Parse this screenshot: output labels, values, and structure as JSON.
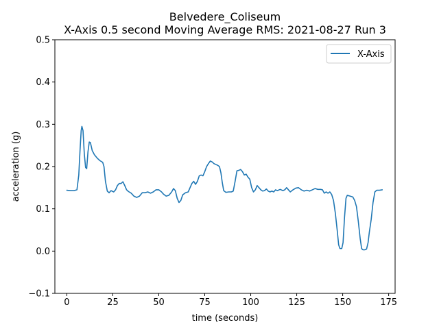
{
  "chart_data": {
    "type": "line",
    "title_line1": "Belvedere_Coliseum",
    "title_line2": "X-Axis 0.5 second Moving Average RMS: 2021-08-27 Run 3",
    "xlabel": "time (seconds)",
    "ylabel": "acceleration (g)",
    "xlim": [
      -6.5,
      178.5
    ],
    "ylim": [
      -0.1,
      0.5
    ],
    "xticks": [
      0,
      25,
      50,
      75,
      100,
      125,
      150,
      175
    ],
    "yticks": [
      -0.1,
      0.0,
      0.1,
      0.2,
      0.3,
      0.4,
      0.5
    ],
    "xtick_labels": [
      "0",
      "25",
      "50",
      "75",
      "100",
      "125",
      "150",
      "175"
    ],
    "ytick_labels": [
      "−0.1",
      "0.0",
      "0.1",
      "0.2",
      "0.3",
      "0.4",
      "0.5"
    ],
    "grid": false,
    "legend_position": "top-right",
    "series": [
      {
        "name": "X-Axis",
        "color": "#1f77b4",
        "points": [
          [
            0,
            0.144
          ],
          [
            2,
            0.143
          ],
          [
            4,
            0.143
          ],
          [
            5.5,
            0.145
          ],
          [
            6.5,
            0.18
          ],
          [
            7.2,
            0.24
          ],
          [
            7.8,
            0.285
          ],
          [
            8.2,
            0.295
          ],
          [
            8.8,
            0.285
          ],
          [
            9.5,
            0.23
          ],
          [
            10.2,
            0.198
          ],
          [
            10.8,
            0.195
          ],
          [
            11.5,
            0.235
          ],
          [
            12.2,
            0.258
          ],
          [
            12.8,
            0.257
          ],
          [
            13.8,
            0.238
          ],
          [
            15,
            0.228
          ],
          [
            16.5,
            0.22
          ],
          [
            18,
            0.214
          ],
          [
            19.5,
            0.21
          ],
          [
            20.2,
            0.2
          ],
          [
            21,
            0.165
          ],
          [
            22,
            0.142
          ],
          [
            23,
            0.138
          ],
          [
            24,
            0.143
          ],
          [
            25.5,
            0.14
          ],
          [
            26.5,
            0.145
          ],
          [
            27.5,
            0.155
          ],
          [
            28.5,
            0.16
          ],
          [
            29.5,
            0.16
          ],
          [
            30.5,
            0.164
          ],
          [
            31.5,
            0.155
          ],
          [
            32.5,
            0.145
          ],
          [
            33.5,
            0.141
          ],
          [
            35,
            0.137
          ],
          [
            36.5,
            0.13
          ],
          [
            38,
            0.127
          ],
          [
            39.5,
            0.13
          ],
          [
            41,
            0.138
          ],
          [
            42.5,
            0.138
          ],
          [
            44,
            0.14
          ],
          [
            45.5,
            0.137
          ],
          [
            47,
            0.14
          ],
          [
            48.5,
            0.145
          ],
          [
            50,
            0.145
          ],
          [
            51.5,
            0.14
          ],
          [
            52.5,
            0.135
          ],
          [
            54,
            0.13
          ],
          [
            55.5,
            0.132
          ],
          [
            57,
            0.14
          ],
          [
            58,
            0.148
          ],
          [
            59,
            0.143
          ],
          [
            60,
            0.125
          ],
          [
            61,
            0.115
          ],
          [
            62,
            0.12
          ],
          [
            63,
            0.133
          ],
          [
            64.5,
            0.138
          ],
          [
            66,
            0.14
          ],
          [
            67,
            0.15
          ],
          [
            68,
            0.16
          ],
          [
            69,
            0.165
          ],
          [
            70,
            0.158
          ],
          [
            71,
            0.165
          ],
          [
            72,
            0.178
          ],
          [
            73,
            0.18
          ],
          [
            74,
            0.178
          ],
          [
            75,
            0.188
          ],
          [
            76,
            0.2
          ],
          [
            77,
            0.207
          ],
          [
            78,
            0.213
          ],
          [
            79,
            0.211
          ],
          [
            80,
            0.207
          ],
          [
            81,
            0.205
          ],
          [
            82,
            0.203
          ],
          [
            83,
            0.2
          ],
          [
            83.8,
            0.185
          ],
          [
            84.5,
            0.163
          ],
          [
            85.3,
            0.143
          ],
          [
            86.5,
            0.139
          ],
          [
            88,
            0.14
          ],
          [
            89.5,
            0.14
          ],
          [
            90.5,
            0.142
          ],
          [
            91.5,
            0.165
          ],
          [
            92.5,
            0.19
          ],
          [
            93.5,
            0.191
          ],
          [
            94.5,
            0.193
          ],
          [
            95.5,
            0.188
          ],
          [
            96.5,
            0.18
          ],
          [
            97.5,
            0.182
          ],
          [
            98.5,
            0.175
          ],
          [
            99.5,
            0.17
          ],
          [
            100.5,
            0.15
          ],
          [
            101.5,
            0.14
          ],
          [
            102.5,
            0.145
          ],
          [
            103.5,
            0.155
          ],
          [
            104.5,
            0.15
          ],
          [
            105.5,
            0.145
          ],
          [
            106.5,
            0.142
          ],
          [
            107.5,
            0.143
          ],
          [
            108.5,
            0.147
          ],
          [
            109.5,
            0.142
          ],
          [
            110.5,
            0.14
          ],
          [
            111.5,
            0.142
          ],
          [
            112.5,
            0.14
          ],
          [
            113.5,
            0.145
          ],
          [
            114.5,
            0.143
          ],
          [
            116,
            0.146
          ],
          [
            117.5,
            0.143
          ],
          [
            118.5,
            0.145
          ],
          [
            119.5,
            0.15
          ],
          [
            120.5,
            0.145
          ],
          [
            121.5,
            0.14
          ],
          [
            123,
            0.145
          ],
          [
            124.5,
            0.149
          ],
          [
            126,
            0.15
          ],
          [
            127.5,
            0.145
          ],
          [
            129,
            0.142
          ],
          [
            130.5,
            0.144
          ],
          [
            132,
            0.142
          ],
          [
            133.5,
            0.145
          ],
          [
            135,
            0.148
          ],
          [
            136.5,
            0.146
          ],
          [
            138,
            0.146
          ],
          [
            139,
            0.145
          ],
          [
            140,
            0.137
          ],
          [
            141,
            0.14
          ],
          [
            142,
            0.137
          ],
          [
            143,
            0.14
          ],
          [
            144,
            0.134
          ],
          [
            145,
            0.12
          ],
          [
            146,
            0.09
          ],
          [
            147,
            0.05
          ],
          [
            147.8,
            0.015
          ],
          [
            148.5,
            0.006
          ],
          [
            149.5,
            0.006
          ],
          [
            150.2,
            0.02
          ],
          [
            151,
            0.08
          ],
          [
            151.8,
            0.125
          ],
          [
            152.5,
            0.132
          ],
          [
            154,
            0.13
          ],
          [
            155.5,
            0.128
          ],
          [
            156.5,
            0.12
          ],
          [
            157.5,
            0.105
          ],
          [
            158.5,
            0.07
          ],
          [
            159.5,
            0.03
          ],
          [
            160.3,
            0.006
          ],
          [
            161,
            0.003
          ],
          [
            162,
            0.003
          ],
          [
            163,
            0.005
          ],
          [
            163.8,
            0.02
          ],
          [
            164.5,
            0.045
          ],
          [
            165.5,
            0.075
          ],
          [
            166.5,
            0.115
          ],
          [
            167.5,
            0.14
          ],
          [
            168.5,
            0.144
          ],
          [
            170,
            0.144
          ],
          [
            171.5,
            0.145
          ]
        ]
      }
    ]
  }
}
